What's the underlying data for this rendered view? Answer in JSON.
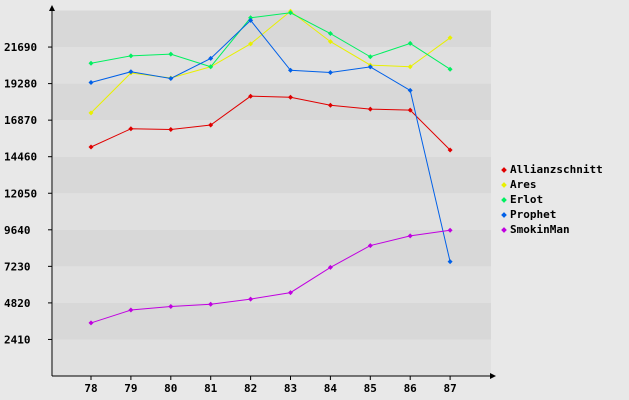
{
  "chart_data": {
    "type": "line",
    "x": [
      "78",
      "79",
      "80",
      "81",
      "82",
      "83",
      "84",
      "85",
      "86",
      "87"
    ],
    "yticks": [
      "2410",
      "4820",
      "7230",
      "9640",
      "12050",
      "14460",
      "16870",
      "19280",
      "21690"
    ],
    "ylim": [
      0,
      24100
    ],
    "legend_position": "right",
    "grid": "horizontal bands",
    "series": [
      {
        "name": "Allianzschnitt",
        "color": "#e00000",
        "values": [
          15100,
          16300,
          16250,
          16550,
          18450,
          18380,
          17850,
          17600,
          17530,
          14900
        ]
      },
      {
        "name": "Ares",
        "color": "#e8f000",
        "values": [
          17350,
          19980,
          19650,
          20390,
          21900,
          24050,
          22050,
          20500,
          20390,
          22300
        ]
      },
      {
        "name": "Erlot",
        "color": "#00f060",
        "values": [
          20620,
          21110,
          21220,
          20390,
          23620,
          23950,
          22580,
          21050,
          21930,
          20230
        ]
      },
      {
        "name": "Prophet",
        "color": "#0060e8",
        "values": [
          19350,
          20060,
          19620,
          20940,
          23450,
          20160,
          20010,
          20380,
          18830,
          7540
        ]
      },
      {
        "name": "SmokinMan",
        "color": "#c000e0",
        "values": [
          3500,
          4350,
          4580,
          4730,
          5070,
          5500,
          7160,
          8600,
          9240,
          9610
        ]
      }
    ]
  }
}
